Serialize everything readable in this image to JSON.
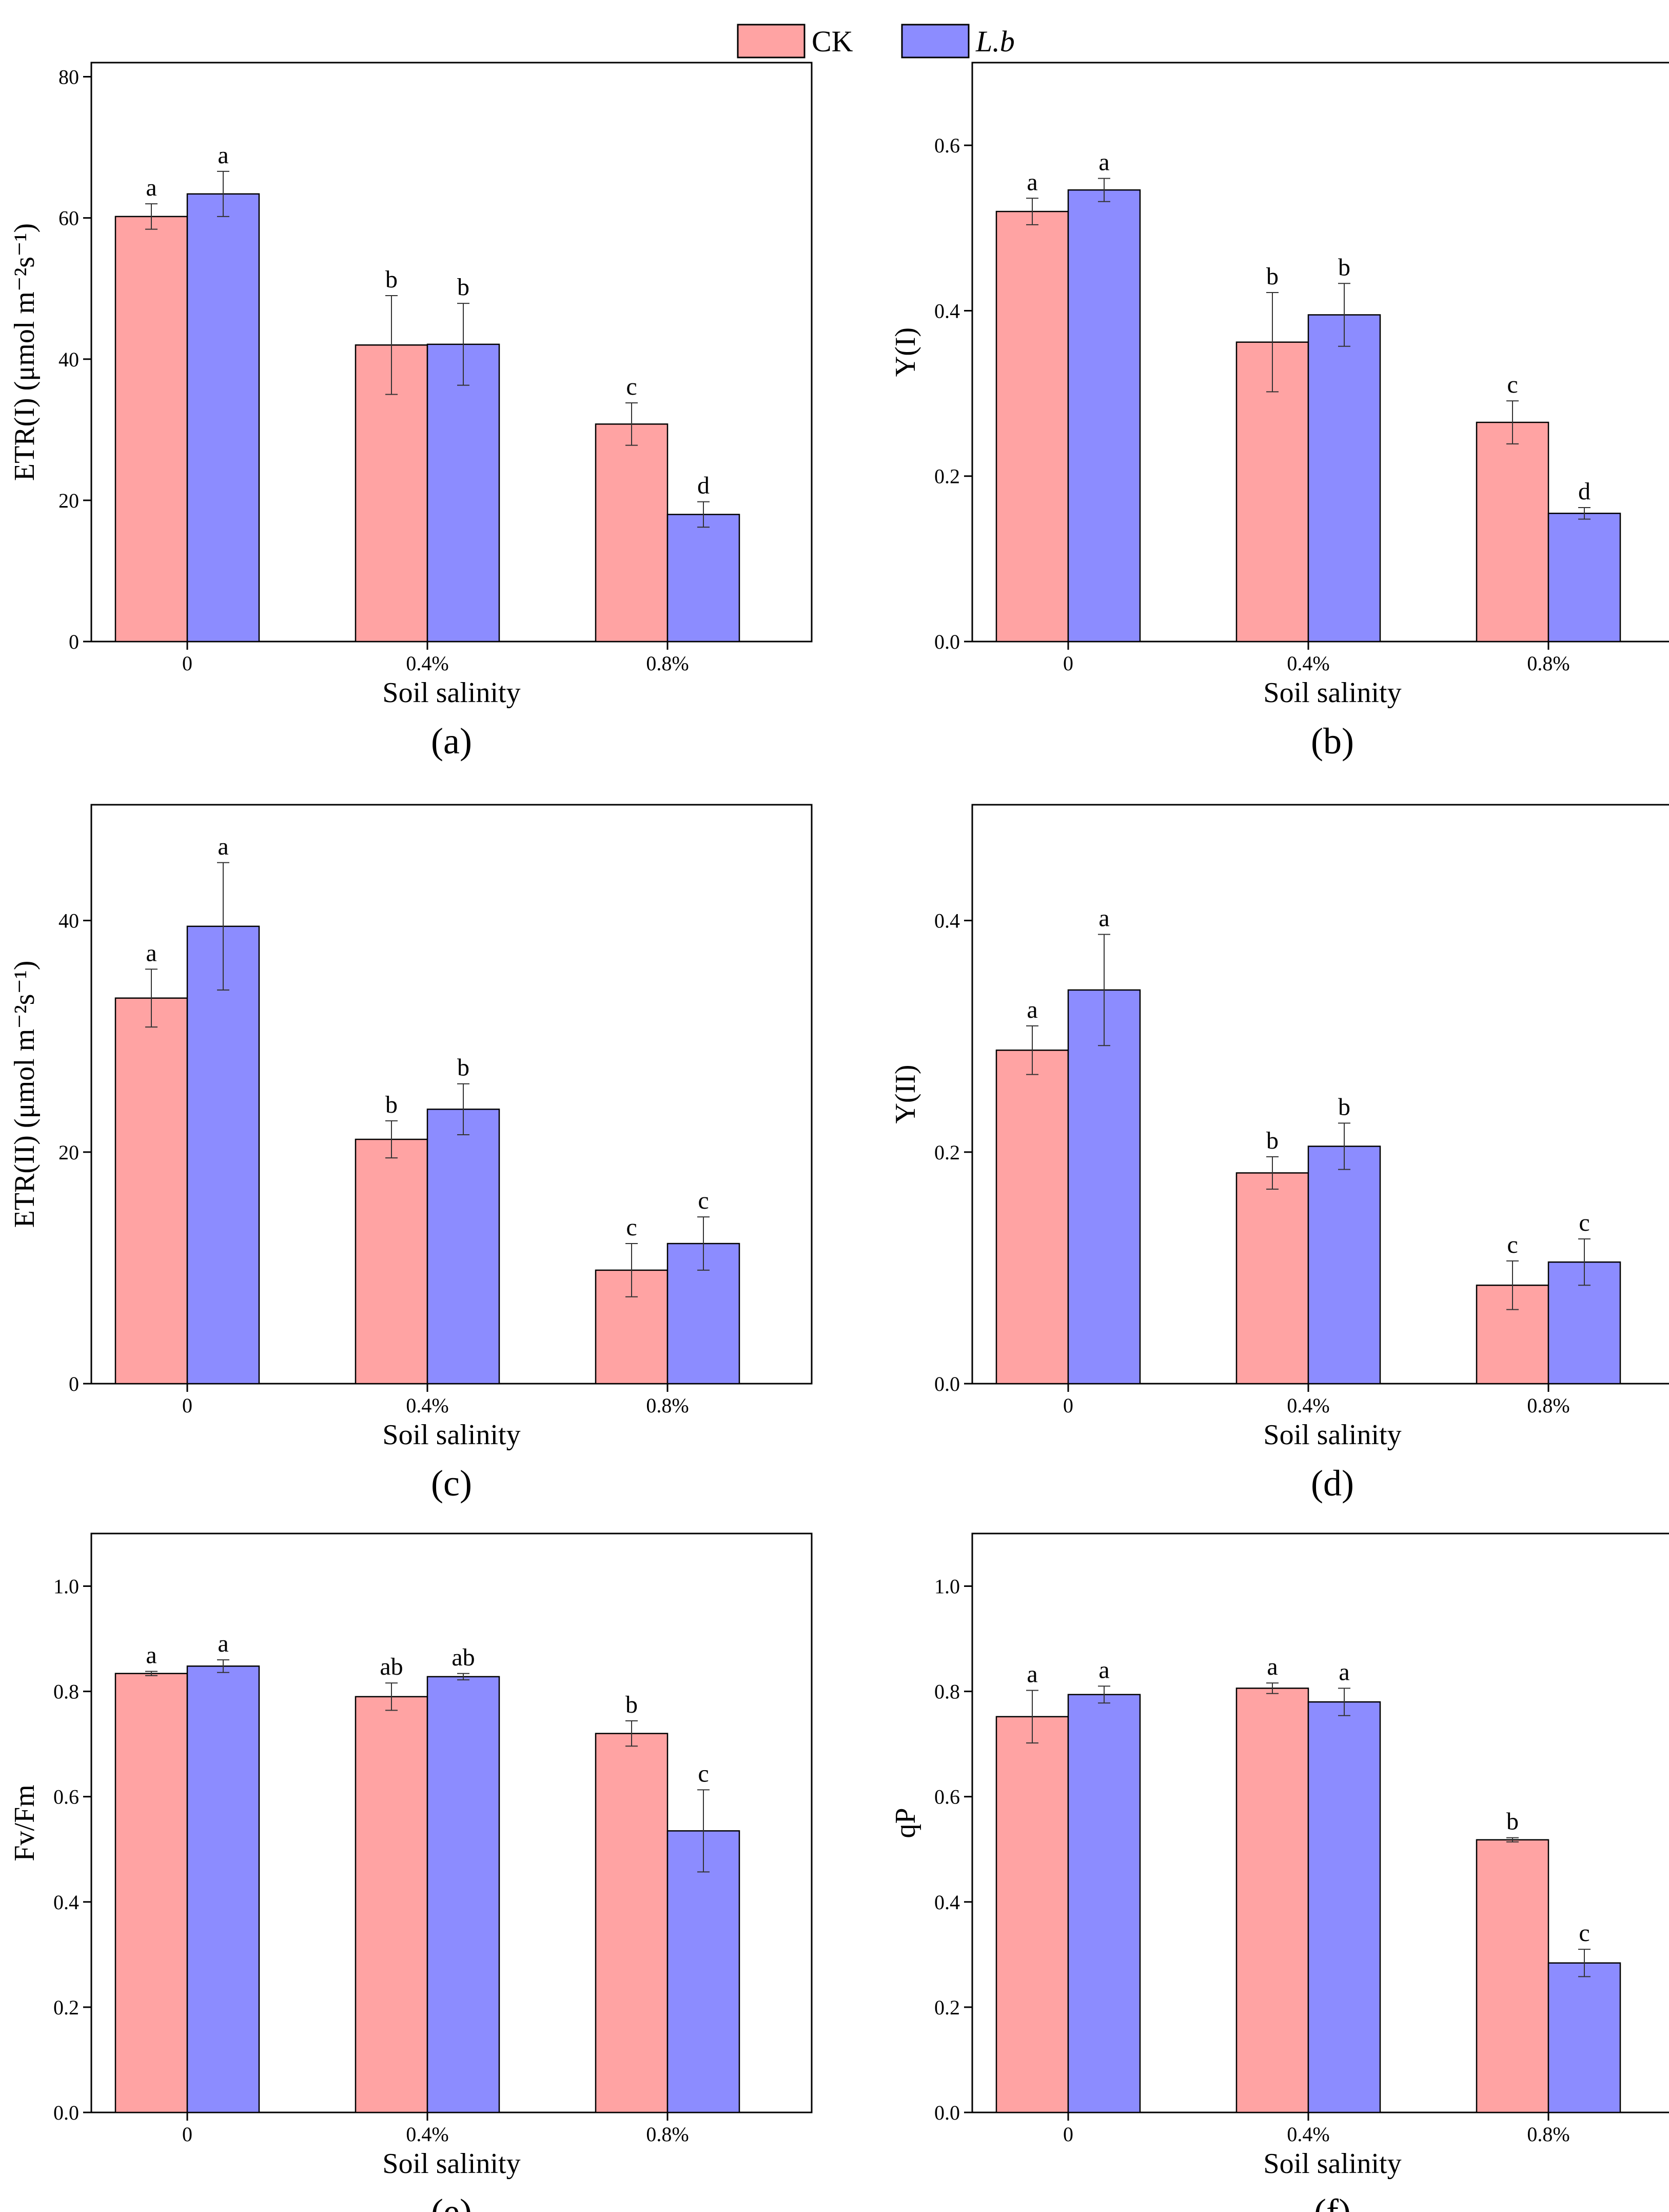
{
  "colors": {
    "ck": "#ffa3a3",
    "lb": "#8c8cff",
    "ck_edge": "#000000",
    "lb_edge": "#000000",
    "axis": "#000000"
  },
  "legend": [
    {
      "label": "CK",
      "italic": false
    },
    {
      "label": "L.b",
      "italic": true
    }
  ],
  "chart_data": [
    {
      "type": "bar",
      "panel_label": "(a)",
      "categories": [
        "0",
        "0.4%",
        "0.8%"
      ],
      "xlabel": "Soil salinity",
      "ylabel": "ETR(I) (μmol m⁻²s⁻¹)",
      "ylim": [
        0,
        82
      ],
      "yticks": [
        0,
        20,
        40,
        60,
        80
      ],
      "series": [
        {
          "name": "CK",
          "values": [
            60.2,
            42.0,
            30.8
          ],
          "errors": [
            1.8,
            7.0,
            3.0
          ],
          "letters": [
            "a",
            "b",
            "c"
          ]
        },
        {
          "name": "L.b",
          "values": [
            63.4,
            42.1,
            18.0
          ],
          "errors": [
            3.2,
            5.8,
            1.8
          ],
          "letters": [
            "a",
            "b",
            "d"
          ]
        }
      ]
    },
    {
      "type": "bar",
      "panel_label": "(b)",
      "categories": [
        "0",
        "0.4%",
        "0.8%"
      ],
      "xlabel": "Soil salinity",
      "ylabel": "Y(I)",
      "ylim": [
        0,
        0.7
      ],
      "yticks": [
        "0.0",
        "0.2",
        "0.4",
        "0.6"
      ],
      "series": [
        {
          "name": "CK",
          "values": [
            0.52,
            0.362,
            0.265
          ],
          "errors": [
            0.016,
            0.06,
            0.026
          ],
          "letters": [
            "a",
            "b",
            "c"
          ]
        },
        {
          "name": "L.b",
          "values": [
            0.546,
            0.395,
            0.155
          ],
          "errors": [
            0.014,
            0.038,
            0.007
          ],
          "letters": [
            "a",
            "b",
            "d"
          ]
        }
      ]
    },
    {
      "type": "bar",
      "panel_label": "(c)",
      "categories": [
        "0",
        "0.4%",
        "0.8%"
      ],
      "xlabel": "Soil salinity",
      "ylabel": "ETR(II) (μmol m⁻²s⁻¹)",
      "ylim": [
        0,
        50
      ],
      "yticks": [
        0,
        20,
        40
      ],
      "series": [
        {
          "name": "CK",
          "values": [
            33.3,
            21.1,
            9.8
          ],
          "errors": [
            2.5,
            1.6,
            2.3
          ],
          "letters": [
            "a",
            "b",
            "c"
          ]
        },
        {
          "name": "L.b",
          "values": [
            39.5,
            23.7,
            12.1
          ],
          "errors": [
            5.5,
            2.2,
            2.3
          ],
          "letters": [
            "a",
            "b",
            "c"
          ]
        }
      ]
    },
    {
      "type": "bar",
      "panel_label": "(d)",
      "categories": [
        "0",
        "0.4%",
        "0.8%"
      ],
      "xlabel": "Soil salinity",
      "ylabel": "Y(II)",
      "ylim": [
        0,
        0.5
      ],
      "yticks": [
        "0.0",
        "0.2",
        "0.4"
      ],
      "series": [
        {
          "name": "CK",
          "values": [
            0.288,
            0.182,
            0.085
          ],
          "errors": [
            0.021,
            0.014,
            0.021
          ],
          "letters": [
            "a",
            "b",
            "c"
          ]
        },
        {
          "name": "L.b",
          "values": [
            0.34,
            0.205,
            0.105
          ],
          "errors": [
            0.048,
            0.02,
            0.02
          ],
          "letters": [
            "a",
            "b",
            "c"
          ]
        }
      ]
    },
    {
      "type": "bar",
      "panel_label": "(e)",
      "categories": [
        "0",
        "0.4%",
        "0.8%"
      ],
      "xlabel": "Soil salinity",
      "ylabel": "Fv/Fm",
      "ylim": [
        0,
        1.1
      ],
      "yticks": [
        "0.0",
        "0.2",
        "0.4",
        "0.6",
        "0.8",
        "1.0"
      ],
      "series": [
        {
          "name": "CK",
          "values": [
            0.834,
            0.79,
            0.72
          ],
          "errors": [
            0.004,
            0.026,
            0.024
          ],
          "letters": [
            "a",
            "ab",
            "b"
          ]
        },
        {
          "name": "L.b",
          "values": [
            0.848,
            0.828,
            0.535
          ],
          "errors": [
            0.012,
            0.006,
            0.078
          ],
          "letters": [
            "a",
            "ab",
            "c"
          ]
        }
      ]
    },
    {
      "type": "bar",
      "panel_label": "(f)",
      "categories": [
        "0",
        "0.4%",
        "0.8%"
      ],
      "xlabel": "Soil salinity",
      "ylabel": "qP",
      "ylim": [
        0,
        1.1
      ],
      "yticks": [
        "0.0",
        "0.2",
        "0.4",
        "0.6",
        "0.8",
        "1.0"
      ],
      "series": [
        {
          "name": "CK",
          "values": [
            0.752,
            0.806,
            0.518
          ],
          "errors": [
            0.05,
            0.01,
            0.004
          ],
          "letters": [
            "a",
            "a",
            "b"
          ]
        },
        {
          "name": "L.b",
          "values": [
            0.794,
            0.78,
            0.284
          ],
          "errors": [
            0.016,
            0.026,
            0.026
          ],
          "letters": [
            "a",
            "a",
            "c"
          ]
        }
      ]
    }
  ]
}
